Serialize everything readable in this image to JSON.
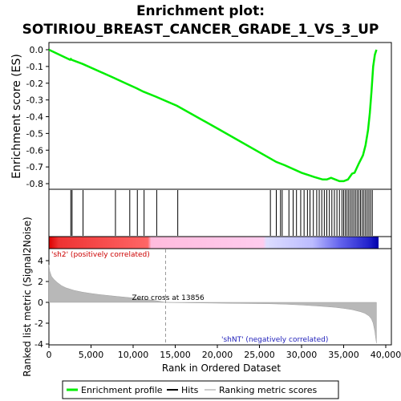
{
  "chart_data": {
    "type": "line",
    "title_line1": "Enrichment plot:",
    "title_line2": "SOTIRIOU_BREAST_CANCER_GRADE_1_VS_3_UP",
    "es_panel": {
      "ylabel": "Enrichment score (ES)",
      "ylim": [
        -0.82,
        0.02
      ],
      "yticks": [
        "0.0",
        "-0.1",
        "-0.2",
        "-0.3",
        "-0.4",
        "-0.5",
        "-0.6",
        "-0.7",
        "-0.8"
      ],
      "ytick_values": [
        0.0,
        -0.1,
        -0.2,
        -0.3,
        -0.4,
        -0.5,
        -0.6,
        -0.7,
        -0.8
      ],
      "series_name": "Enrichment profile",
      "color": "#00ee00",
      "x": [
        0,
        2500,
        2600,
        2700,
        4000,
        7800,
        8000,
        9500,
        10400,
        11200,
        12700,
        15200,
        20000,
        26300,
        27000,
        28000,
        30000,
        31500,
        32500,
        33000,
        33500,
        34000,
        34500,
        35000,
        35500,
        36000,
        36300,
        36800,
        37300,
        37600,
        37900,
        38100,
        38300,
        38500,
        38700,
        38900
      ],
      "y": [
        0.0,
        -0.06,
        -0.055,
        -0.06,
        -0.085,
        -0.17,
        -0.175,
        -0.21,
        -0.23,
        -0.25,
        -0.28,
        -0.335,
        -0.47,
        -0.65,
        -0.67,
        -0.69,
        -0.735,
        -0.76,
        -0.775,
        -0.775,
        -0.765,
        -0.775,
        -0.785,
        -0.785,
        -0.775,
        -0.74,
        -0.735,
        -0.68,
        -0.63,
        -0.57,
        -0.48,
        -0.38,
        -0.25,
        -0.1,
        -0.03,
        0.0
      ]
    },
    "hits_panel": {
      "series_name": "Hits",
      "hits": [
        2600,
        2750,
        4050,
        7900,
        9600,
        10500,
        11300,
        12800,
        15300,
        26300,
        27000,
        27500,
        27700,
        28500,
        29000,
        29400,
        29900,
        30300,
        30700,
        31000,
        31400,
        31800,
        32100,
        32400,
        32700,
        33000,
        33300,
        33600,
        33900,
        34200,
        34500,
        34800,
        35000,
        35200,
        35400,
        35600,
        35800,
        36000,
        36200,
        36400,
        36600,
        36800,
        37000,
        37200,
        37400,
        37600,
        37800,
        38000,
        38200,
        38400
      ]
    },
    "rank_bar": {
      "pos_label": "'sh2' (positively correlated)",
      "neg_label": "'shNT' (negatively correlated)",
      "pos_color": "#dd0000",
      "neg_color": "#0000cc"
    },
    "metric_panel": {
      "ylabel": "Ranked list metric (Signal2Noise)",
      "ylim": [
        -4,
        4
      ],
      "yticks": [
        "4",
        "2",
        "0",
        "-2",
        "-4"
      ],
      "ytick_values": [
        4,
        2,
        0,
        -2,
        -4
      ],
      "series_name": "Ranking metric scores",
      "zero_cross_label": "Zero cross at 13856",
      "zero_cross_x": 13856,
      "x": [
        0,
        100,
        300,
        600,
        1000,
        1500,
        2000,
        3000,
        4000,
        5000,
        6000,
        7000,
        8000,
        9000,
        10000,
        11000,
        12000,
        13000,
        13856,
        15000,
        17000,
        20000,
        23000,
        26000,
        28000,
        30000,
        32000,
        34000,
        35000,
        36000,
        37000,
        37500,
        38000,
        38300,
        38500,
        38700,
        38800,
        38900
      ],
      "y": [
        3.6,
        3.0,
        2.5,
        2.2,
        1.9,
        1.6,
        1.4,
        1.15,
        0.98,
        0.85,
        0.75,
        0.66,
        0.58,
        0.5,
        0.42,
        0.33,
        0.24,
        0.12,
        0.0,
        -0.02,
        -0.05,
        -0.08,
        -0.11,
        -0.13,
        -0.18,
        -0.25,
        -0.35,
        -0.48,
        -0.58,
        -0.7,
        -0.9,
        -1.05,
        -1.3,
        -1.6,
        -2.0,
        -2.8,
        -3.4,
        -3.9
      ]
    },
    "x_axis": {
      "xlabel": "Rank in Ordered Dataset",
      "xlim": [
        0,
        40000
      ],
      "xticks": [
        "0",
        "5,000",
        "10,000",
        "15,000",
        "20,000",
        "25,000",
        "30,000",
        "35,000",
        "40,000"
      ],
      "xtick_values": [
        0,
        5000,
        10000,
        15000,
        20000,
        25000,
        30000,
        35000,
        40000
      ]
    },
    "legend": {
      "placement": "bottom",
      "entries": [
        "Enrichment profile",
        "Hits",
        "Ranking metric scores"
      ]
    }
  }
}
